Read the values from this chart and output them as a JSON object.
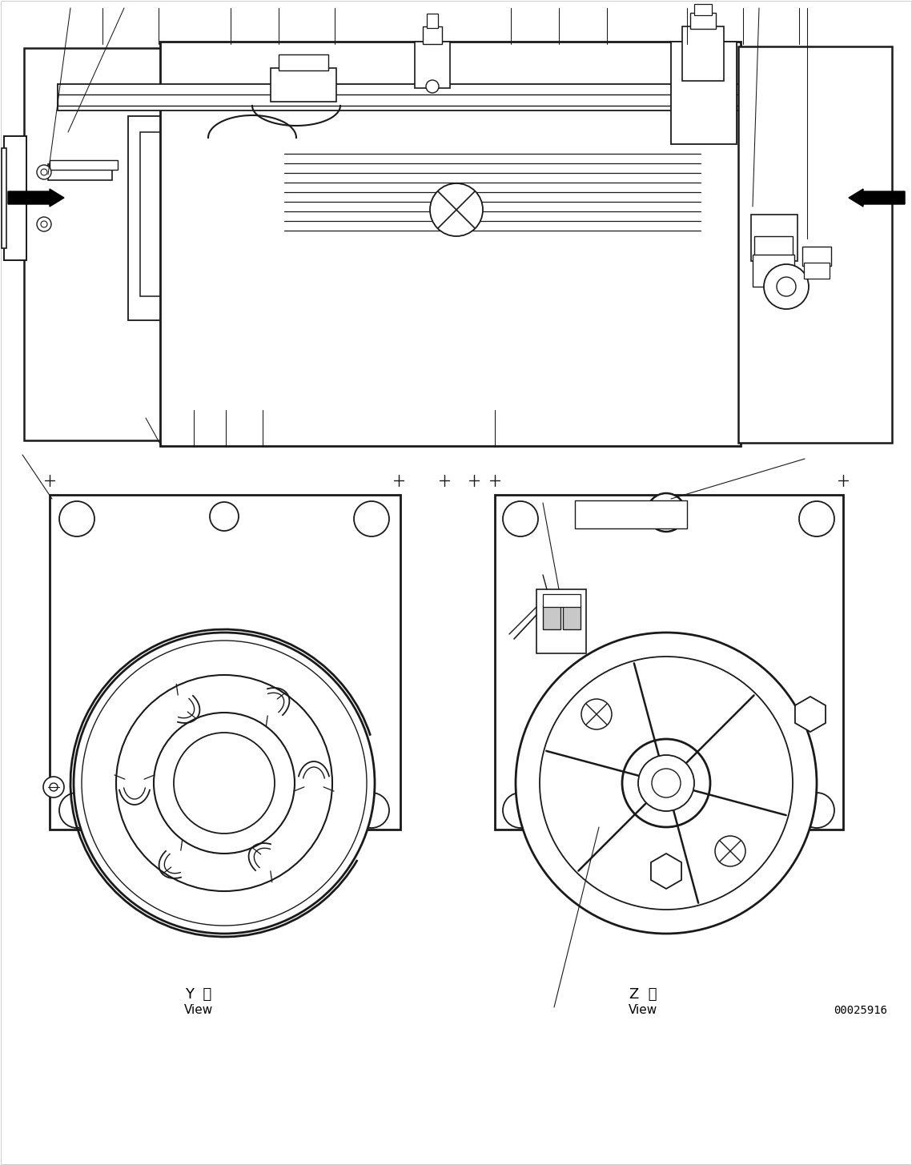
{
  "bg_color": "#ffffff",
  "lc": "#1a1a1a",
  "y_label": "Y  視",
  "y_sub": "View",
  "z_label": "Z  視",
  "z_sub": "View",
  "part_num": "00025916"
}
